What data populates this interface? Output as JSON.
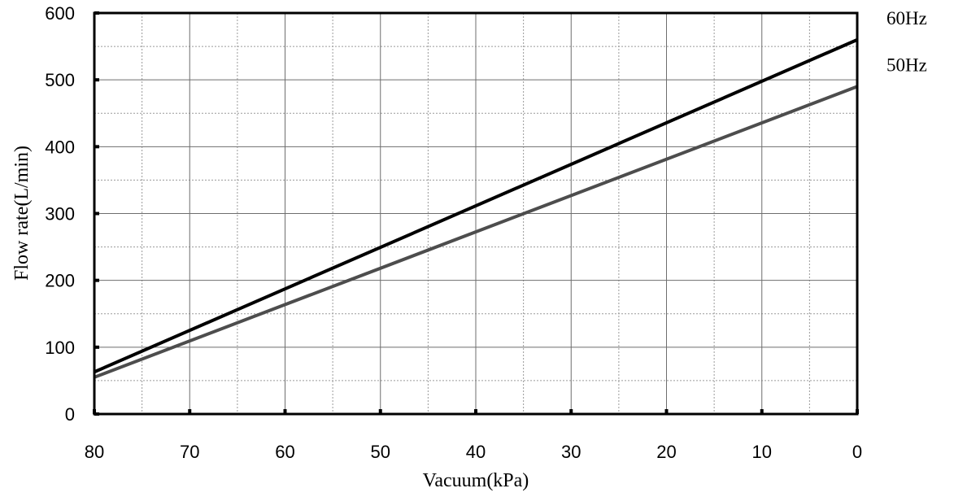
{
  "chart_data": {
    "type": "line",
    "xlabel": "Vacuum(kPa)",
    "ylabel": "Flow rate(L/min)",
    "xlim": [
      80,
      0
    ],
    "ylim": [
      0,
      600
    ],
    "x_reversed": true,
    "x_ticks": [
      80,
      70,
      60,
      50,
      40,
      30,
      20,
      10,
      0
    ],
    "y_ticks": [
      0,
      100,
      200,
      300,
      400,
      500,
      600
    ],
    "x_minor_grid": [
      75,
      65,
      55,
      45,
      35,
      25,
      15,
      5
    ],
    "y_minor_grid": [
      50,
      150,
      250,
      350,
      450,
      550
    ],
    "grid": true,
    "legend": "right-inline-labels",
    "series": [
      {
        "name": "60Hz",
        "color": "#000000",
        "x": [
          80,
          0
        ],
        "y": [
          63,
          560
        ]
      },
      {
        "name": "50Hz",
        "color": "#4d4d4d",
        "x": [
          80,
          0
        ],
        "y": [
          55,
          490
        ]
      }
    ]
  }
}
